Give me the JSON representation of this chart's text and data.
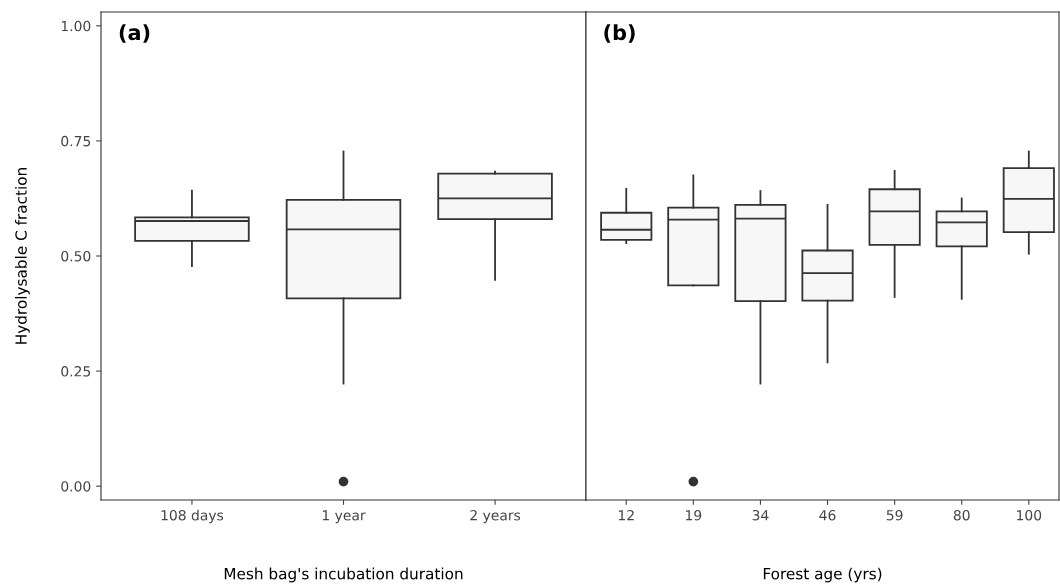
{
  "chart_data": [
    {
      "type": "box",
      "title": "(a)",
      "xlabel": "Mesh bag's incubation duration",
      "ylabel": "Hydrolysable C fraction",
      "categories": [
        "108 days",
        "1 year",
        "2 years"
      ],
      "ylim": [
        -0.03,
        1.03
      ],
      "yticks": [
        {
          "value": 0,
          "label": "0.00"
        },
        {
          "value": 0.25,
          "label": "0.25"
        },
        {
          "value": 0.5,
          "label": "0.50"
        },
        {
          "value": 0.75,
          "label": "0.75"
        },
        {
          "value": 1,
          "label": "1.00"
        }
      ],
      "grid": false,
      "color": "#f7f7f7",
      "boxes": [
        {
          "low": 0.478,
          "q1": 0.533,
          "median": 0.576,
          "q3": 0.584,
          "high": 0.642
        },
        {
          "low": 0.223,
          "q1": 0.408,
          "median": 0.558,
          "q3": 0.622,
          "high": 0.727,
          "outliers": [
            0.01
          ]
        },
        {
          "low": 0.448,
          "q1": 0.58,
          "median": 0.625,
          "q3": 0.679,
          "high": 0.683
        }
      ]
    },
    {
      "type": "box",
      "title": "(b)",
      "xlabel": "Forest age (yrs)",
      "categories": [
        "12",
        "19",
        "34",
        "46",
        "59",
        "80",
        "100"
      ],
      "ylim": [
        -0.03,
        1.03
      ],
      "tick_labels": "x",
      "grid": false,
      "color": "#f7f7f7",
      "boxes": [
        {
          "low": 0.528,
          "q1": 0.535,
          "median": 0.557,
          "q3": 0.594,
          "high": 0.646
        },
        {
          "low": 0.436,
          "q1": 0.436,
          "median": 0.579,
          "q3": 0.605,
          "high": 0.675,
          "outliers": [
            0.01
          ]
        },
        {
          "low": 0.223,
          "q1": 0.402,
          "median": 0.581,
          "q3": 0.611,
          "high": 0.641
        },
        {
          "low": 0.269,
          "q1": 0.403,
          "median": 0.463,
          "q3": 0.512,
          "high": 0.611
        },
        {
          "low": 0.411,
          "q1": 0.524,
          "median": 0.597,
          "q3": 0.645,
          "high": 0.685
        },
        {
          "low": 0.407,
          "q1": 0.521,
          "median": 0.573,
          "q3": 0.597,
          "high": 0.625
        },
        {
          "low": 0.505,
          "q1": 0.552,
          "median": 0.624,
          "q3": 0.691,
          "high": 0.727
        }
      ]
    }
  ]
}
